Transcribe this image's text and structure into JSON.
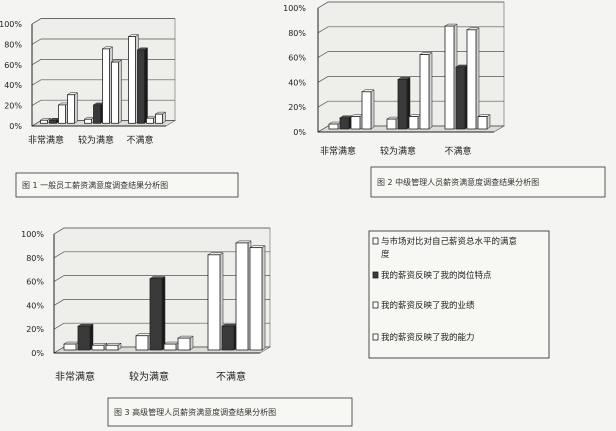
{
  "chart_data": [
    {
      "type": "bar",
      "title": "图 1 一般员工薪资满意度调查结果分析图",
      "categories": [
        "非常满意",
        "较为满意",
        "不满意"
      ],
      "ylim": [
        0,
        100
      ],
      "yticks": [
        "0%",
        "20%",
        "40%",
        "60%",
        "80%",
        "100%"
      ],
      "grid": true,
      "series": [
        {
          "name": "与市场对比对自己薪资总水平的满意度",
          "values": [
            3,
            4,
            85
          ]
        },
        {
          "name": "我的薪资反映了我的岗位特点",
          "values": [
            3,
            18,
            72
          ]
        },
        {
          "name": "我的薪资反映了我的业绩",
          "values": [
            18,
            73,
            5
          ]
        },
        {
          "name": "我的薪资反映了我的能力",
          "values": [
            28,
            60,
            9
          ]
        }
      ]
    },
    {
      "type": "bar",
      "title": "图 2 中级管理人员薪资满意度调查结果分析图",
      "categories": [
        "非常满意",
        "较为满意",
        "不满意"
      ],
      "ylim": [
        0,
        100
      ],
      "yticks": [
        "0%",
        "20%",
        "40%",
        "60%",
        "80%",
        "100%"
      ],
      "grid": true,
      "series": [
        {
          "name": "与市场对比对自己薪资总水平的满意度",
          "values": [
            4,
            8,
            83
          ]
        },
        {
          "name": "我的薪资反映了我的岗位特点",
          "values": [
            9,
            40,
            50
          ]
        },
        {
          "name": "我的薪资反映了我的业绩",
          "values": [
            10,
            10,
            80
          ]
        },
        {
          "name": "我的薪资反映了我的能力",
          "values": [
            30,
            60,
            10
          ]
        }
      ]
    },
    {
      "type": "bar",
      "title": "图 3 高级管理人员薪资满意度调查结果分析图",
      "categories": [
        "非常满意",
        "较为满意",
        "不满意"
      ],
      "ylim": [
        0,
        100
      ],
      "yticks": [
        "0%",
        "20%",
        "40%",
        "60%",
        "80%",
        "100%"
      ],
      "grid": true,
      "legend": "right",
      "series": [
        {
          "name": "与市场对比对自己薪资总水平的满意度",
          "values": [
            5,
            12,
            80
          ]
        },
        {
          "name": "我的薪资反映了我的岗位特点",
          "values": [
            20,
            60,
            20
          ]
        },
        {
          "name": "我的薪资反映了我的业绩",
          "values": [
            4,
            5,
            90
          ]
        },
        {
          "name": "我的薪资反映了我的能力",
          "values": [
            4,
            10,
            86
          ]
        }
      ]
    }
  ],
  "colors": {
    "series_fills": [
      "#ffffff",
      "#3a3a3a",
      "#ffffff",
      "#ffffff"
    ],
    "frame": "#222222",
    "wall": "#eeeeea"
  }
}
